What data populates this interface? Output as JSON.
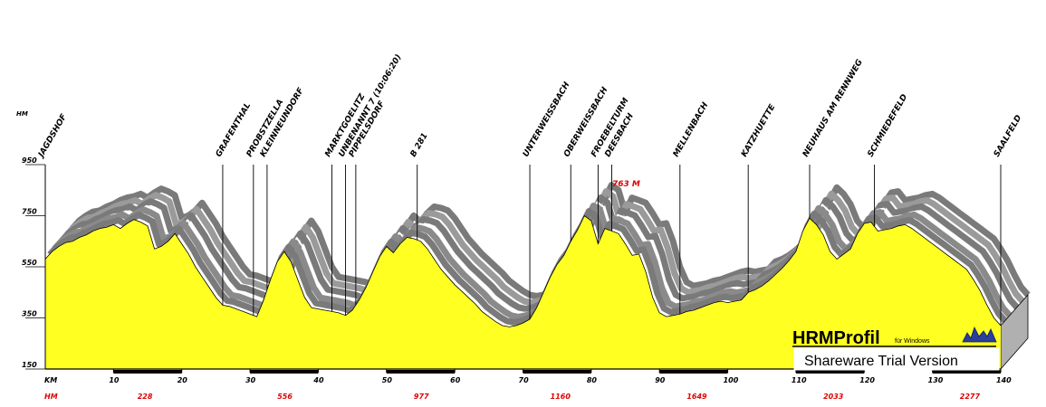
{
  "chart_data": {
    "type": "area",
    "ylabel": "HM",
    "xlabel": "KM",
    "xlim": [
      0,
      140
    ],
    "ylim": [
      150,
      950
    ],
    "y_ticks": [
      150,
      350,
      550,
      750,
      950
    ],
    "x_ticks": [
      10,
      20,
      30,
      40,
      50,
      60,
      70,
      80,
      90,
      100,
      110,
      120,
      130,
      140
    ],
    "fill_color": "#ffff22",
    "shadow_color": "#808080",
    "profile": {
      "x": [
        0,
        1,
        2,
        3,
        4,
        5,
        6,
        7,
        8,
        9,
        10,
        11,
        12,
        13,
        14,
        15,
        16,
        17,
        18,
        19,
        20,
        21,
        22,
        23,
        24,
        25,
        26,
        27,
        28,
        29,
        30,
        31,
        32,
        33,
        34,
        35,
        36,
        37,
        38,
        39,
        40,
        41,
        42,
        43,
        44,
        45,
        46,
        47,
        48,
        49,
        50,
        51,
        52,
        53,
        54,
        55,
        56,
        57,
        58,
        59,
        60,
        61,
        62,
        63,
        64,
        65,
        66,
        67,
        68,
        69,
        70,
        71,
        72,
        73,
        74,
        75,
        76,
        77,
        78,
        79,
        80,
        81,
        82,
        83,
        84,
        85,
        86,
        87,
        88,
        89,
        90,
        91,
        92,
        93,
        94,
        95,
        96,
        97,
        98,
        99,
        100,
        101,
        102,
        103,
        104,
        105,
        106,
        107,
        108,
        109,
        110,
        111,
        112,
        113,
        114,
        115,
        116,
        117,
        118,
        119,
        120,
        121,
        122,
        123,
        124,
        125,
        126,
        127,
        128,
        129,
        130,
        131,
        132,
        133,
        134,
        135,
        136,
        137,
        138,
        139,
        140
      ],
      "y": [
        580,
        610,
        630,
        645,
        650,
        665,
        675,
        690,
        700,
        705,
        715,
        700,
        720,
        735,
        725,
        710,
        620,
        630,
        650,
        680,
        640,
        600,
        550,
        510,
        470,
        430,
        400,
        395,
        385,
        375,
        365,
        355,
        420,
        500,
        570,
        610,
        570,
        500,
        430,
        390,
        385,
        380,
        375,
        370,
        360,
        380,
        420,
        470,
        530,
        590,
        630,
        605,
        640,
        665,
        660,
        650,
        620,
        580,
        540,
        510,
        480,
        455,
        430,
        405,
        375,
        355,
        335,
        320,
        315,
        320,
        330,
        345,
        390,
        450,
        510,
        560,
        595,
        650,
        695,
        750,
        730,
        640,
        700,
        690,
        680,
        640,
        595,
        600,
        530,
        430,
        370,
        355,
        360,
        365,
        375,
        380,
        390,
        400,
        410,
        415,
        410,
        415,
        420,
        450,
        460,
        475,
        495,
        520,
        545,
        575,
        610,
        690,
        740,
        715,
        675,
        610,
        580,
        600,
        620,
        680,
        720,
        725,
        690,
        695,
        700,
        710,
        715,
        700,
        680,
        660,
        640,
        620,
        600,
        580,
        560,
        540,
        500,
        455,
        400,
        350,
        320
      ]
    },
    "places": [
      {
        "name": "JAGDSHOF",
        "km": 0
      },
      {
        "name": "GRAFENTHAL",
        "km": 26
      },
      {
        "name": "PROBSTZELLA",
        "km": 30.5
      },
      {
        "name": "KLEINNEUNDORF",
        "km": 32.5
      },
      {
        "name": "MARKTGOELITZ",
        "km": 42
      },
      {
        "name": "UNBENANNT 7 (10:06:20)",
        "km": 44
      },
      {
        "name": "PIPPELSDORF",
        "km": 45.5
      },
      {
        "name": "B 281",
        "km": 54.5
      },
      {
        "name": "UNTERWEISSBACH",
        "km": 71
      },
      {
        "name": "OBERWEISSBACH",
        "km": 77
      },
      {
        "name": "FROEBELTURM",
        "km": 81
      },
      {
        "name": "DEESBACH",
        "km": 83
      },
      {
        "name": "MELLENBACH",
        "km": 93
      },
      {
        "name": "KATZHUETTE",
        "km": 103
      },
      {
        "name": "NEUHAUS AM RENNWEG",
        "km": 112
      },
      {
        "name": "SCHMIEDEFELD",
        "km": 121.5
      },
      {
        "name": "SAALFELD",
        "km": 140
      }
    ],
    "peak_annotation": {
      "text": "763 M",
      "km": 86
    },
    "cumulative_hm": {
      "label": "HM",
      "values": [
        {
          "value": "228",
          "km": 13.5
        },
        {
          "value": "556",
          "km": 34
        },
        {
          "value": "977",
          "km": 54
        },
        {
          "value": "1160",
          "km": 74
        },
        {
          "value": "1649",
          "km": 94
        },
        {
          "value": "2033",
          "km": 114
        },
        {
          "value": "2277",
          "km": 134
        }
      ]
    }
  },
  "watermark": {
    "brand": "HRMProfil",
    "brand_suffix": "für Windows",
    "banner": "Shareware Trial  Version"
  }
}
